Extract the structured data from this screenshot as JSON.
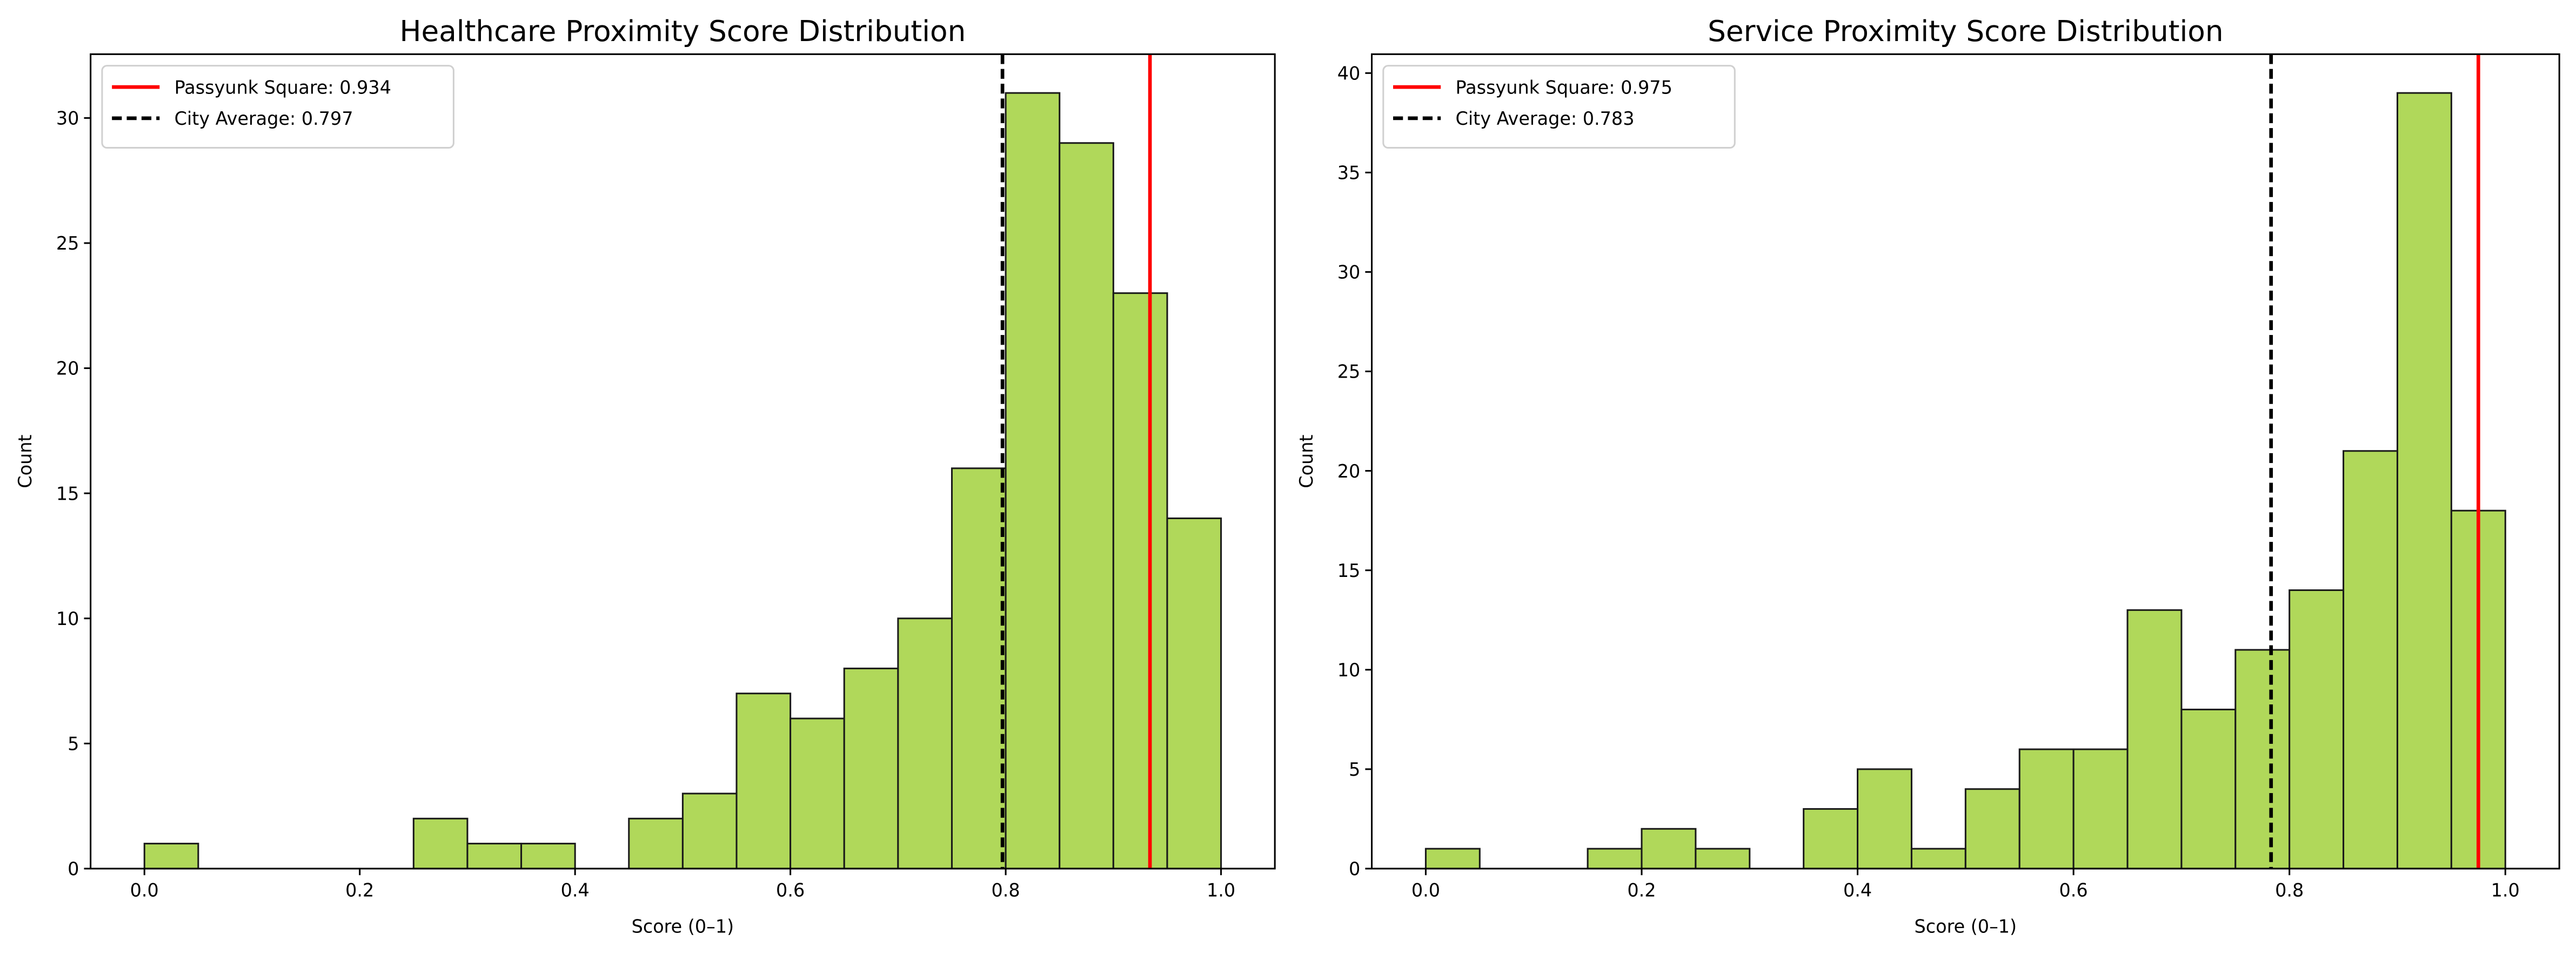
{
  "chart_data": [
    {
      "type": "bar",
      "title": "Healthcare Proximity Score Distribution",
      "xlabel": "Score (0–1)",
      "ylabel": "Count",
      "bin_edges": [
        0,
        0.05,
        0.1,
        0.15,
        0.2,
        0.25,
        0.3,
        0.35,
        0.4,
        0.45,
        0.5,
        0.55,
        0.6,
        0.65,
        0.7,
        0.75,
        0.8,
        0.85,
        0.9,
        0.95,
        1.0
      ],
      "values": [
        1,
        0,
        0,
        0,
        0,
        2,
        1,
        1,
        0,
        2,
        3,
        7,
        6,
        8,
        10,
        16,
        31,
        29,
        23,
        14
      ],
      "xlim": [
        -0.05,
        1.05
      ],
      "ylim": [
        0,
        32.55
      ],
      "xticks": [
        "0.0",
        "0.2",
        "0.4",
        "0.6",
        "0.8",
        "1.0"
      ],
      "yticks": [
        "0",
        "5",
        "10",
        "15",
        "20",
        "25",
        "30"
      ],
      "bar_color": "#b0d85a",
      "grid": false,
      "legend_position": "upper-left",
      "reference_lines": [
        {
          "label": "Passyunk Square: 0.934",
          "x": 0.934,
          "color": "#ff0000",
          "style": "solid"
        },
        {
          "label": "City Average: 0.797",
          "x": 0.797,
          "color": "#000000",
          "style": "dashed"
        }
      ]
    },
    {
      "type": "bar",
      "title": "Service Proximity Score Distribution",
      "xlabel": "Score (0–1)",
      "ylabel": "Count",
      "bin_edges": [
        0,
        0.05,
        0.1,
        0.15,
        0.2,
        0.25,
        0.3,
        0.35,
        0.4,
        0.45,
        0.5,
        0.55,
        0.6,
        0.65,
        0.7,
        0.75,
        0.8,
        0.85,
        0.9,
        0.95,
        1.0
      ],
      "values": [
        1,
        0,
        0,
        1,
        2,
        1,
        0,
        3,
        5,
        1,
        4,
        6,
        6,
        13,
        8,
        11,
        14,
        21,
        39,
        18
      ],
      "xlim": [
        -0.05,
        1.05
      ],
      "ylim": [
        0,
        40.95
      ],
      "xticks": [
        "0.0",
        "0.2",
        "0.4",
        "0.6",
        "0.8",
        "1.0"
      ],
      "yticks": [
        "0",
        "5",
        "10",
        "15",
        "20",
        "25",
        "30",
        "35",
        "40"
      ],
      "bar_color": "#b0d85a",
      "grid": false,
      "legend_position": "upper-left",
      "reference_lines": [
        {
          "label": "Passyunk Square: 0.975",
          "x": 0.975,
          "color": "#ff0000",
          "style": "solid"
        },
        {
          "label": "City Average: 0.783",
          "x": 0.783,
          "color": "#000000",
          "style": "dashed"
        }
      ]
    }
  ]
}
